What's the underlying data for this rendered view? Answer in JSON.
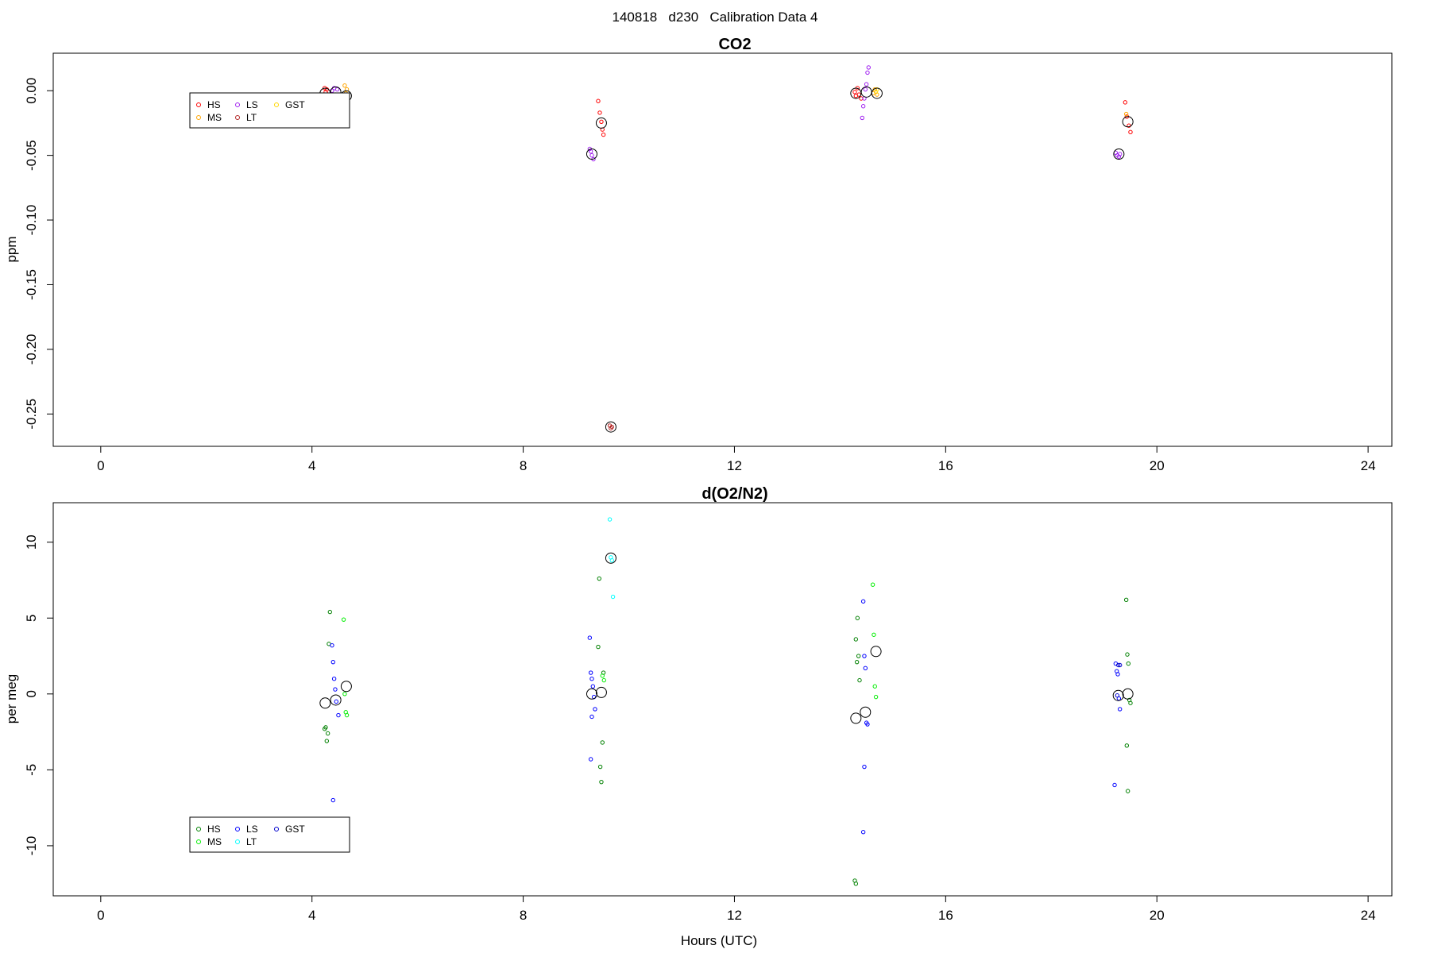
{
  "main_title": "140818   d230   Calibration Data 4",
  "chart_data": [
    {
      "type": "scatter",
      "title": "CO2",
      "xlabel": "",
      "ylabel": "ppm",
      "xlim": [
        -0.9,
        24.45
      ],
      "ylim": [
        -0.275,
        0.029
      ],
      "xticks": [
        0,
        4,
        8,
        12,
        16,
        20,
        24
      ],
      "yticks": [
        0.0,
        -0.05,
        -0.1,
        -0.15,
        -0.2,
        -0.25
      ],
      "ytick_labels": [
        "0.00",
        "-0.05",
        "-0.10",
        "-0.15",
        "-0.20",
        "-0.25"
      ],
      "grid": false,
      "legend_position": "top-left",
      "colors": {
        "HS": "#ff0000",
        "MS": "#ffa500",
        "LS": "#a020f0",
        "LT": "#b22222",
        "GST": "#ffd700",
        "mean": "#000000"
      },
      "legend": [
        {
          "name": "HS",
          "color": "#ff0000"
        },
        {
          "name": "MS",
          "color": "#ffa500"
        },
        {
          "name": "LS",
          "color": "#a020f0"
        },
        {
          "name": "LT",
          "color": "#b22222"
        },
        {
          "name": "GST",
          "color": "#ffd700"
        }
      ],
      "series": [
        {
          "name": "HS",
          "points": [
            [
              4.24,
              0.002
            ],
            [
              4.26,
              -0.001
            ],
            [
              4.28,
              0.001
            ],
            [
              4.3,
              -0.003
            ],
            [
              9.42,
              -0.008
            ],
            [
              9.45,
              -0.017
            ],
            [
              9.48,
              -0.024
            ],
            [
              9.5,
              -0.03
            ],
            [
              9.52,
              -0.034
            ],
            [
              14.28,
              -0.001
            ],
            [
              14.3,
              -0.004
            ],
            [
              14.33,
              0.002
            ],
            [
              14.36,
              -0.003
            ],
            [
              14.4,
              -0.006
            ],
            [
              19.4,
              -0.009
            ],
            [
              19.43,
              -0.02
            ],
            [
              19.47,
              -0.027
            ],
            [
              19.5,
              -0.032
            ]
          ]
        },
        {
          "name": "MS",
          "points": [
            [
              4.62,
              0.004
            ],
            [
              4.64,
              -0.002
            ],
            [
              4.66,
              0.001
            ],
            [
              14.63,
              -0.002
            ],
            [
              14.66,
              0.001
            ],
            [
              14.7,
              -0.003
            ],
            [
              19.42,
              -0.018
            ]
          ]
        },
        {
          "name": "LS",
          "points": [
            [
              4.38,
              0.0
            ],
            [
              4.42,
              0.002
            ],
            [
              4.45,
              -0.003
            ],
            [
              4.48,
              0.001
            ],
            [
              9.26,
              -0.045
            ],
            [
              9.28,
              -0.047
            ],
            [
              9.3,
              -0.05
            ],
            [
              9.33,
              -0.053
            ],
            [
              14.42,
              -0.021
            ],
            [
              14.44,
              -0.012
            ],
            [
              14.46,
              -0.006
            ],
            [
              14.48,
              0.001
            ],
            [
              14.5,
              0.005
            ],
            [
              14.52,
              0.014
            ],
            [
              14.54,
              0.018
            ],
            [
              19.22,
              -0.048
            ],
            [
              19.25,
              -0.05
            ],
            [
              19.28,
              -0.051
            ],
            [
              19.3,
              -0.049
            ]
          ]
        },
        {
          "name": "LT",
          "points": [
            [
              9.64,
              -0.259
            ],
            [
              9.66,
              -0.261
            ],
            [
              9.68,
              -0.26
            ]
          ]
        },
        {
          "name": "GST",
          "points": [
            [
              14.68,
              -0.001
            ],
            [
              14.7,
              0.001
            ]
          ]
        },
        {
          "name": "mean",
          "points": [
            [
              4.25,
              -0.002
            ],
            [
              4.45,
              -0.001
            ],
            [
              4.65,
              -0.004
            ],
            [
              9.3,
              -0.049
            ],
            [
              9.48,
              -0.025
            ],
            [
              9.66,
              -0.26
            ],
            [
              14.3,
              -0.002
            ],
            [
              14.5,
              -0.001
            ],
            [
              14.7,
              -0.002
            ],
            [
              19.28,
              -0.049
            ],
            [
              19.45,
              -0.024
            ]
          ]
        }
      ]
    },
    {
      "type": "scatter",
      "title": "d(O2/N2)",
      "xlabel": "Hours (UTC)",
      "ylabel": "per meg",
      "xlim": [
        -0.9,
        24.45
      ],
      "ylim": [
        -13.3,
        12.6
      ],
      "xticks": [
        0,
        4,
        8,
        12,
        16,
        20,
        24
      ],
      "yticks": [
        10,
        5,
        0,
        -5,
        -10
      ],
      "ytick_labels": [
        "10",
        "5",
        "0",
        "-5",
        "-10"
      ],
      "grid": false,
      "legend_position": "bottom-left",
      "colors": {
        "HS": "#008000",
        "MS": "#00ee00",
        "LS": "#0000ff",
        "LT": "#00ffff",
        "GST": "#0000cd",
        "mean": "#000000"
      },
      "legend": [
        {
          "name": "HS",
          "color": "#008000"
        },
        {
          "name": "MS",
          "color": "#00ee00"
        },
        {
          "name": "LS",
          "color": "#0000ff"
        },
        {
          "name": "LT",
          "color": "#00ffff"
        },
        {
          "name": "GST",
          "color": "#0000cd"
        }
      ],
      "series": [
        {
          "name": "HS",
          "points": [
            [
              4.24,
              -2.3
            ],
            [
              4.26,
              -2.2
            ],
            [
              4.28,
              -3.1
            ],
            [
              4.3,
              -2.6
            ],
            [
              4.32,
              3.3
            ],
            [
              4.34,
              5.4
            ],
            [
              9.42,
              3.1
            ],
            [
              9.44,
              7.6
            ],
            [
              9.46,
              -4.8
            ],
            [
              9.48,
              -5.8
            ],
            [
              9.5,
              -3.2
            ],
            [
              9.52,
              1.4
            ],
            [
              14.28,
              -12.3
            ],
            [
              14.3,
              -12.5
            ],
            [
              14.3,
              3.6
            ],
            [
              14.33,
              5.0
            ],
            [
              14.35,
              2.5
            ],
            [
              14.37,
              0.9
            ],
            [
              14.32,
              2.1
            ],
            [
              19.42,
              6.2
            ],
            [
              19.44,
              2.6
            ],
            [
              19.46,
              2.0
            ],
            [
              19.48,
              -0.4
            ],
            [
              19.5,
              -0.6
            ],
            [
              19.43,
              -3.4
            ],
            [
              19.45,
              -6.4
            ]
          ]
        },
        {
          "name": "MS",
          "points": [
            [
              4.6,
              4.9
            ],
            [
              4.62,
              0.0
            ],
            [
              4.64,
              -1.2
            ],
            [
              4.66,
              -1.4
            ],
            [
              9.5,
              1.2
            ],
            [
              9.53,
              0.9
            ],
            [
              14.62,
              7.2
            ],
            [
              14.64,
              3.9
            ],
            [
              14.66,
              0.5
            ],
            [
              14.68,
              -0.2
            ]
          ]
        },
        {
          "name": "LS",
          "points": [
            [
              4.38,
              3.2
            ],
            [
              4.4,
              2.1
            ],
            [
              4.42,
              1.0
            ],
            [
              4.44,
              0.3
            ],
            [
              4.46,
              -0.5
            ],
            [
              4.5,
              -1.4
            ],
            [
              4.4,
              -7.0
            ],
            [
              9.26,
              3.7
            ],
            [
              9.28,
              1.4
            ],
            [
              9.3,
              1.0
            ],
            [
              9.32,
              0.5
            ],
            [
              9.34,
              -0.2
            ],
            [
              9.36,
              -1.0
            ],
            [
              9.3,
              -1.5
            ],
            [
              9.28,
              -4.3
            ],
            [
              14.44,
              6.1
            ],
            [
              14.46,
              2.5
            ],
            [
              14.48,
              1.7
            ],
            [
              14.5,
              -1.9
            ],
            [
              14.52,
              -2.0
            ],
            [
              14.46,
              -4.8
            ],
            [
              14.44,
              -9.1
            ],
            [
              19.22,
              2.0
            ],
            [
              19.24,
              1.5
            ],
            [
              19.26,
              1.3
            ],
            [
              19.28,
              -0.3
            ],
            [
              19.3,
              -1.0
            ],
            [
              19.2,
              -6.0
            ]
          ]
        },
        {
          "name": "LT",
          "points": [
            [
              9.64,
              11.5
            ],
            [
              9.66,
              9.0
            ],
            [
              9.68,
              8.8
            ],
            [
              9.7,
              6.4
            ]
          ]
        },
        {
          "name": "GST",
          "points": [
            [
              19.27,
              1.9
            ],
            [
              19.3,
              1.9
            ],
            [
              19.25,
              -0.1
            ]
          ]
        },
        {
          "name": "mean",
          "points": [
            [
              4.25,
              -0.6
            ],
            [
              4.45,
              -0.4
            ],
            [
              4.65,
              0.5
            ],
            [
              9.3,
              0.0
            ],
            [
              9.48,
              0.1
            ],
            [
              9.66,
              8.95
            ],
            [
              14.3,
              -1.6
            ],
            [
              14.48,
              -1.2
            ],
            [
              14.68,
              2.8
            ],
            [
              19.27,
              -0.1
            ],
            [
              19.45,
              0.0
            ]
          ]
        }
      ]
    }
  ]
}
